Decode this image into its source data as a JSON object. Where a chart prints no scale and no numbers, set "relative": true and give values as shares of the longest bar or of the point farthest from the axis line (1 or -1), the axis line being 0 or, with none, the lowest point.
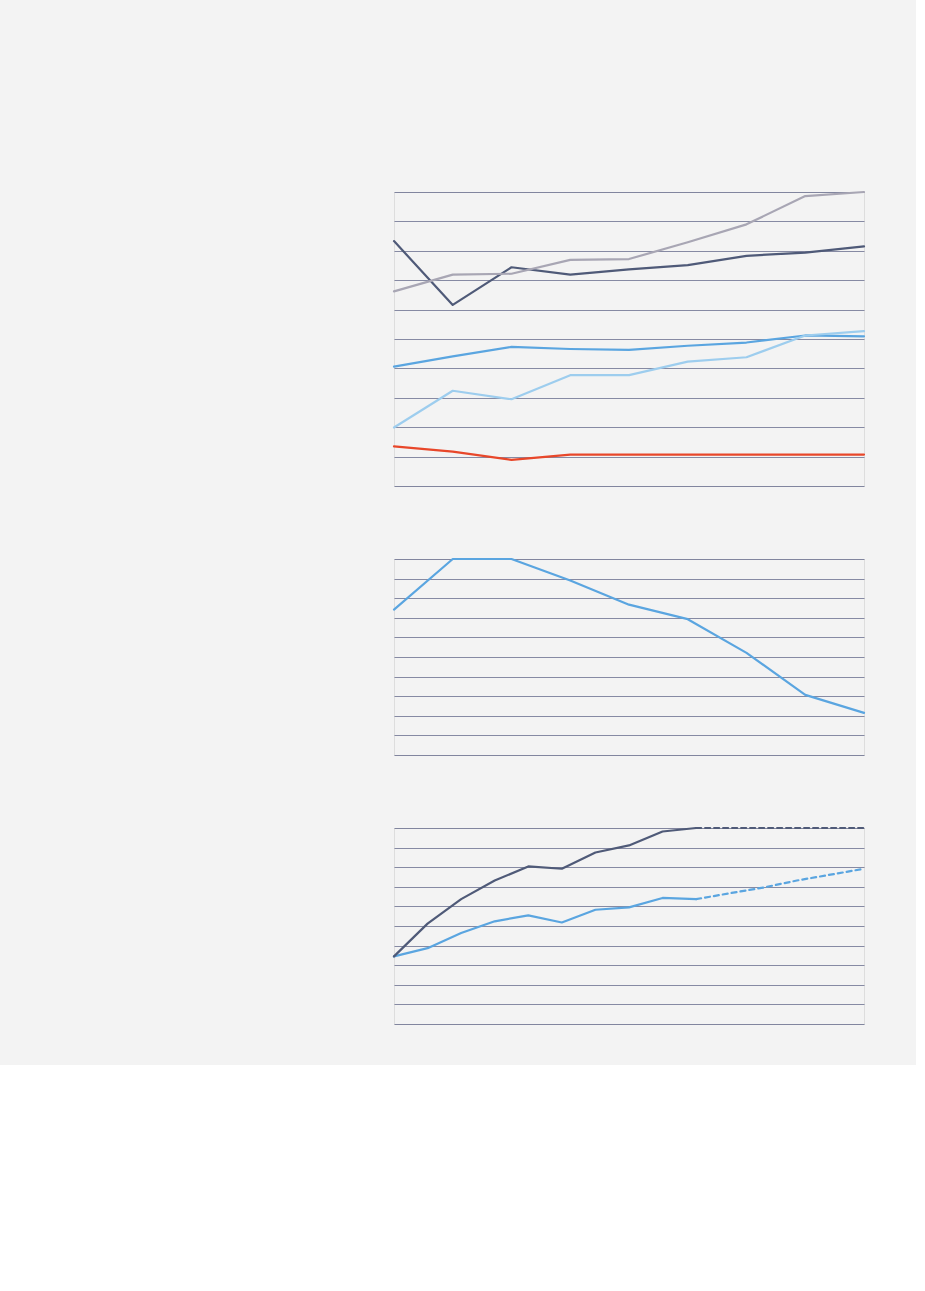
{
  "chart_data": [
    {
      "type": "line",
      "relative": true,
      "grid": "y",
      "tick_labels": false,
      "categories": [
        null,
        null,
        null,
        null,
        null,
        null,
        null,
        null,
        null
      ],
      "series": [
        {
          "color": "#5aa5e0",
          "values": [
            0.406,
            0.441,
            0.473,
            0.466,
            0.463,
            0.477,
            0.488,
            0.512,
            0.509
          ]
        },
        {
          "color": "#4f5a78",
          "values": [
            0.833,
            0.616,
            0.744,
            0.719,
            0.737,
            0.751,
            0.783,
            0.794,
            0.815
          ]
        },
        {
          "color": "#a8a6b4",
          "values": [
            0.662,
            0.719,
            0.722,
            0.769,
            0.772,
            0.829,
            0.89,
            0.986,
            1
          ]
        },
        {
          "color": "#9dcdee",
          "values": [
            0.199,
            0.324,
            0.295,
            0.377,
            0.377,
            0.423,
            0.438,
            0.512,
            0.527
          ]
        },
        {
          "color": "#e8472a",
          "values": [
            0.135,
            0.117,
            0.089,
            0.107,
            0.107,
            0.107,
            0.107,
            0.107,
            0.107
          ]
        }
      ]
    },
    {
      "type": "line",
      "relative": true,
      "grid": "y",
      "tick_labels": false,
      "categories": [
        null,
        null,
        null,
        null,
        null,
        null,
        null,
        null,
        null
      ],
      "series": [
        {
          "color": "#5aa5e0",
          "values": [
            0.742,
            1,
            1,
            0.89,
            0.767,
            0.693,
            0.521,
            0.307,
            0.215
          ]
        }
      ]
    },
    {
      "type": "line",
      "relative": true,
      "grid": "y",
      "tick_labels": false,
      "categories": [
        null,
        null,
        null,
        null,
        null,
        null,
        null,
        null,
        null,
        null,
        null,
        null,
        null,
        null,
        null
      ],
      "series": [
        {
          "color": "#5aa5e0",
          "line_style": "solid",
          "values": [
            0.345,
            0.387,
            0.464,
            0.524,
            0.554,
            0.518,
            0.583,
            0.595,
            0.643,
            0.637,
            null,
            null,
            null,
            null,
            null
          ]
        },
        {
          "color": "#4f5a78",
          "line_style": "solid",
          "values": [
            0.345,
            0.512,
            0.637,
            0.732,
            0.804,
            0.792,
            0.875,
            0.911,
            0.982,
            1,
            null,
            null,
            null,
            null,
            null
          ]
        },
        {
          "color": "#5aa5e0",
          "line_style": "dashed",
          "values": [
            null,
            null,
            null,
            null,
            null,
            null,
            null,
            null,
            null,
            0.637,
            0.667,
            0.696,
            0.732,
            0.762,
            0.792
          ]
        },
        {
          "color": "#4f5a78",
          "line_style": "dashed",
          "values": [
            null,
            null,
            null,
            null,
            null,
            null,
            null,
            null,
            null,
            1,
            1,
            1,
            1,
            1,
            1
          ]
        }
      ]
    }
  ]
}
